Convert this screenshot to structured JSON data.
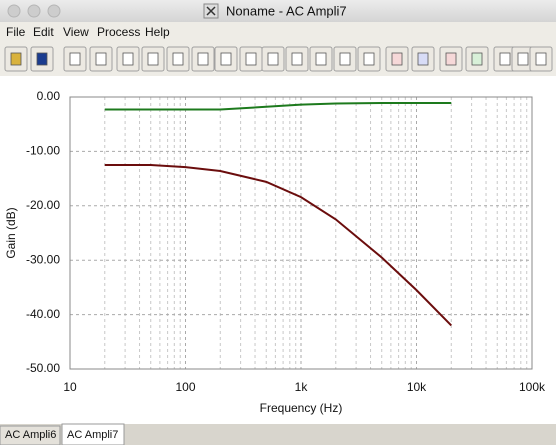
{
  "window": {
    "title": "Noname - AC Ampli7"
  },
  "menu": [
    "File",
    "Edit",
    "View",
    "Process",
    "Help"
  ],
  "tabs": [
    "AC Ampli6",
    "AC Ampli7"
  ],
  "chart_data": {
    "type": "line",
    "x_label": "Frequency (Hz)",
    "y_label": "Gain (dB)",
    "x": [
      20,
      50,
      100,
      200,
      500,
      1000,
      2000,
      5000,
      10000,
      20000
    ],
    "series": [
      {
        "color": "#1d7a1d",
        "values": [
          -2.3,
          -2.3,
          -2.3,
          -2.3,
          -1.8,
          -1.4,
          -1.2,
          -1.1,
          -1.1,
          -1.1
        ]
      },
      {
        "color": "#6b0d0d",
        "values": [
          -12.5,
          -12.5,
          -12.9,
          -13.6,
          -15.6,
          -18.4,
          -22.5,
          -29.5,
          -35.5,
          -42
        ]
      }
    ],
    "xlog": true,
    "xlim": [
      10,
      100000
    ],
    "xticks": [
      10,
      100,
      {
        "value": 1000,
        "label": "1k"
      },
      {
        "value": 10000,
        "label": "10k"
      },
      {
        "value": 100000,
        "label": "100k"
      }
    ],
    "ylim": [
      -50,
      0
    ],
    "yticks": [
      {
        "value": 0,
        "label": "0.00"
      },
      {
        "value": -10,
        "label": "-10.00"
      },
      {
        "value": -20,
        "label": "-20.00"
      },
      {
        "value": -30,
        "label": "-30.00"
      },
      {
        "value": -40,
        "label": "-40.00"
      },
      {
        "value": -50,
        "label": "-50.00"
      }
    ],
    "grid": true
  }
}
